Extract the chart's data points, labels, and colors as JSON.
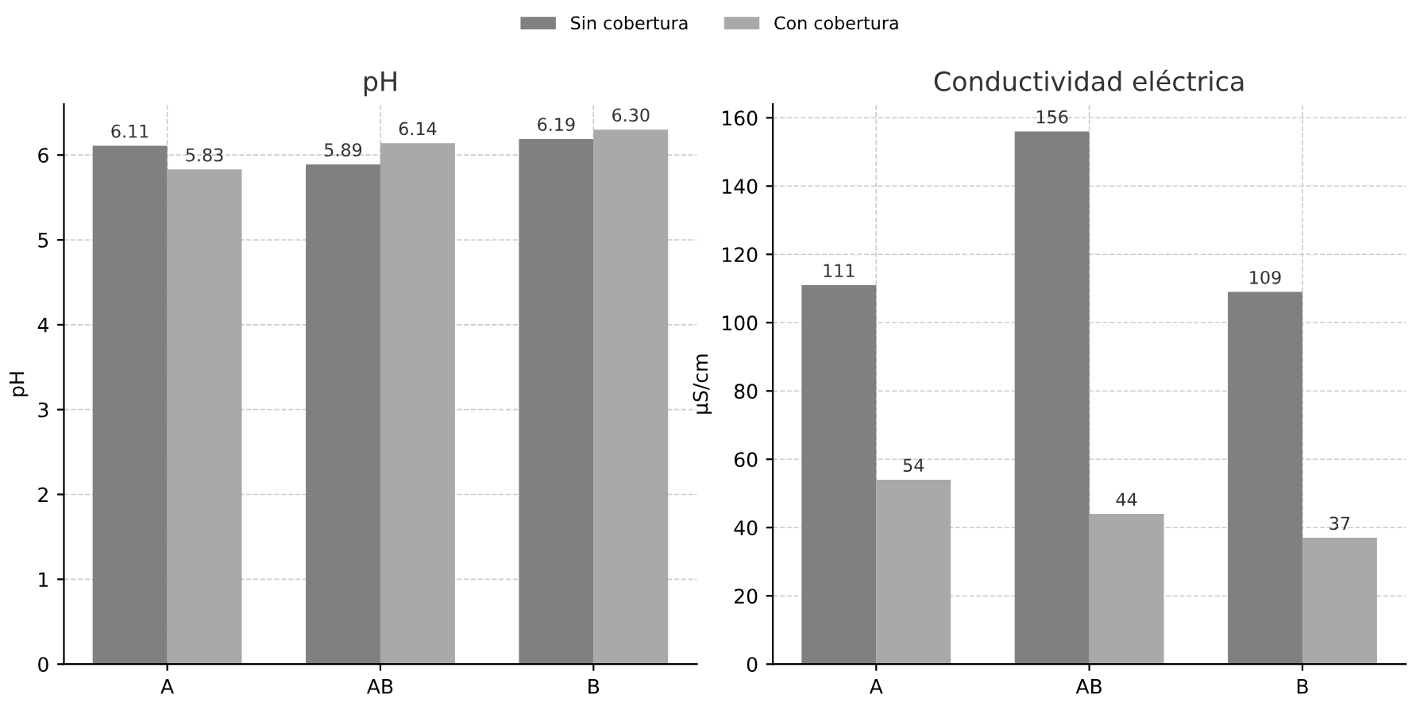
{
  "chart_data": [
    {
      "type": "bar",
      "title": "pH",
      "ylabel": "pH",
      "categories": [
        "A",
        "AB",
        "B"
      ],
      "legend": "top",
      "grid": true,
      "ylim": [
        0,
        6.6
      ],
      "yticks": [
        0,
        1,
        2,
        3,
        4,
        5,
        6
      ],
      "series": [
        {
          "name": "Sin cobertura",
          "color": "#808080",
          "values": [
            6.11,
            5.89,
            6.19
          ],
          "value_labels": [
            "6.11",
            "5.89",
            "6.19"
          ]
        },
        {
          "name": "Con cobertura",
          "color": "#a9a9a9",
          "values": [
            5.83,
            6.14,
            6.3
          ],
          "value_labels": [
            "5.83",
            "6.14",
            "6.30"
          ]
        }
      ]
    },
    {
      "type": "bar",
      "title": "Conductividad eléctrica",
      "ylabel": "µS/cm",
      "categories": [
        "A",
        "AB",
        "B"
      ],
      "grid": true,
      "ylim": [
        0,
        164
      ],
      "yticks": [
        0,
        20,
        40,
        60,
        80,
        100,
        120,
        140,
        160
      ],
      "series": [
        {
          "name": "Sin cobertura",
          "color": "#808080",
          "values": [
            111,
            156,
            109
          ],
          "value_labels": [
            "111",
            "156",
            "109"
          ]
        },
        {
          "name": "Con cobertura",
          "color": "#a9a9a9",
          "values": [
            54,
            44,
            37
          ],
          "value_labels": [
            "54",
            "44",
            "37"
          ]
        }
      ]
    }
  ]
}
